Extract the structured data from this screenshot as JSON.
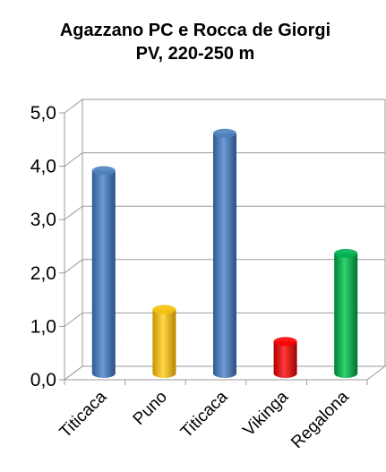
{
  "chart_data": {
    "type": "bar",
    "title_lines": [
      "Agazzano PC e Rocca de Giorgi",
      "PV, 220-250 m"
    ],
    "categories": [
      "Titicaca",
      "Puno",
      "Titicaca",
      "Vikinga",
      "Regalona"
    ],
    "values": [
      3.8,
      1.2,
      4.5,
      0.6,
      2.25
    ],
    "bar_colors": [
      "#4F81BD",
      "#F4C20D",
      "#4F81BD",
      "#FF0000",
      "#00B050"
    ],
    "ylim": [
      0,
      5
    ],
    "y_ticks": [
      "0,0",
      "1,0",
      "2,0",
      "3,0",
      "4,0",
      "5,0"
    ],
    "xlabel": "",
    "ylabel": "",
    "grid": true,
    "legend": "none",
    "style": "3d-cylinder"
  }
}
